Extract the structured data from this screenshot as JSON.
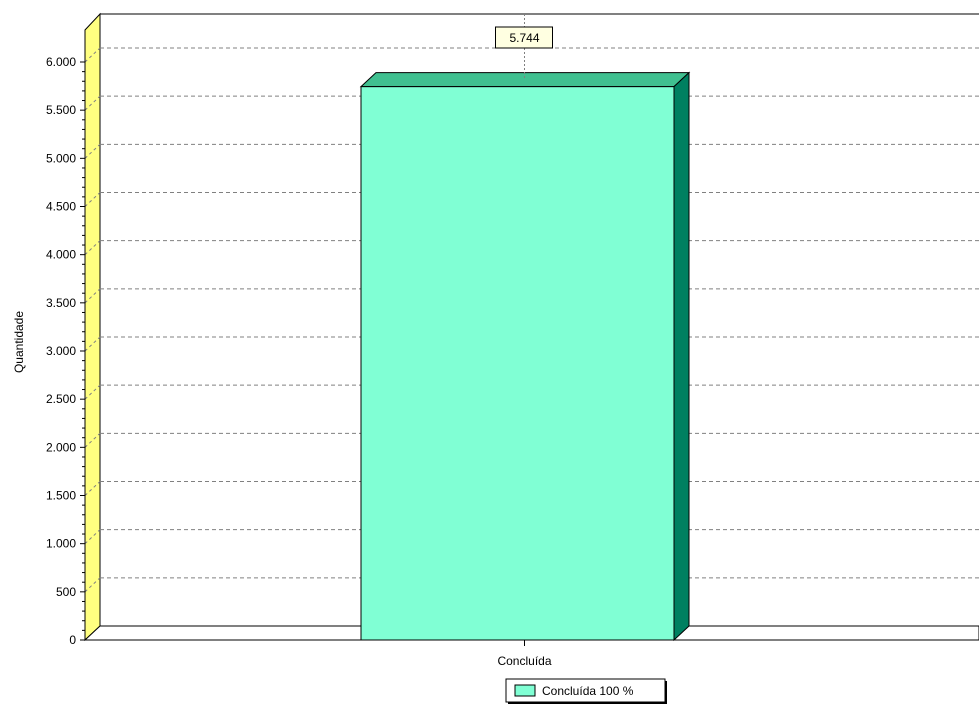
{
  "chart_data": {
    "type": "bar",
    "title": "",
    "xlabel": "",
    "ylabel": "Quantidade",
    "categories": [
      "Concluída"
    ],
    "series": [
      {
        "values": [
          5744
        ]
      }
    ],
    "data_labels": [
      "5.744"
    ],
    "ylim": [
      0,
      6000
    ],
    "yticks": [
      0,
      500,
      1000,
      1500,
      2000,
      2500,
      3000,
      3500,
      4000,
      4500,
      5000,
      5500,
      6000
    ],
    "ytick_labels": [
      "0",
      "500",
      "1.000",
      "1.500",
      "2.000",
      "2.500",
      "3.000",
      "3.500",
      "4.000",
      "4.500",
      "5.000",
      "5.500",
      "6.000"
    ],
    "grid": true,
    "legend_position": "bottom-center",
    "legend": [
      {
        "label": "Concluída 100 %"
      }
    ],
    "colors": {
      "bar_front": "#80FFD4",
      "bar_top": "#40C090",
      "bar_side": "#008060",
      "wall": "#FFFF80",
      "grid": "#808080",
      "label_bg": "#FFFFE1"
    }
  }
}
